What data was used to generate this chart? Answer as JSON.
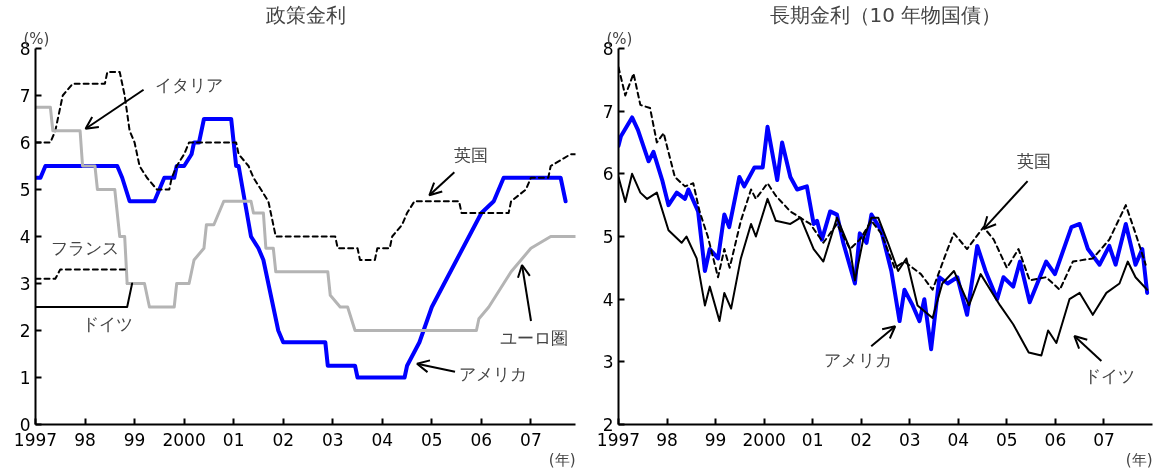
{
  "chart_data": [
    {
      "type": "line",
      "title": "政策金利",
      "ylabel": "(%)",
      "xlabel": "(年)",
      "xlim": [
        1997,
        2007.9
      ],
      "ylim": [
        0,
        8
      ],
      "xticks": [
        {
          "value": 1997,
          "label": "1997"
        },
        {
          "value": 1998,
          "label": "98"
        },
        {
          "value": 1999,
          "label": "99"
        },
        {
          "value": 2000,
          "label": "2000"
        },
        {
          "value": 2001,
          "label": "01"
        },
        {
          "value": 2002,
          "label": "02"
        },
        {
          "value": 2003,
          "label": "03"
        },
        {
          "value": 2004,
          "label": "04"
        },
        {
          "value": 2005,
          "label": "05"
        },
        {
          "value": 2006,
          "label": "06"
        },
        {
          "value": 2007,
          "label": "07"
        }
      ],
      "yticks": [
        0,
        1,
        2,
        3,
        4,
        5,
        6,
        7,
        8
      ],
      "series": [
        {
          "color": "#0000ff",
          "line_style": "solid",
          "x": [
            1997,
            1997.1,
            1997.2,
            1998.65,
            1998.75,
            1998.9,
            1999.4,
            1999.5,
            1999.6,
            1999.8,
            1999.85,
            2000.0,
            2000.15,
            2000.2,
            2000.3,
            2000.4,
            2000.95,
            2001.05,
            2001.1,
            2001.35,
            2001.5,
            2001.6,
            2001.9,
            2002.0,
            2002.85,
            2002.9,
            2003.45,
            2003.5,
            2004.45,
            2004.5,
            2004.75,
            2005.0,
            2005.25,
            2005.5,
            2005.75,
            2006.0,
            2006.25,
            2006.45,
            2007.6,
            2007.7
          ],
          "values": [
            5.25,
            5.25,
            5.5,
            5.5,
            5.25,
            4.75,
            4.75,
            5.0,
            5.25,
            5.25,
            5.5,
            5.5,
            5.75,
            6.0,
            6.0,
            6.5,
            6.5,
            5.5,
            5.5,
            4.0,
            3.75,
            3.5,
            2.0,
            1.75,
            1.75,
            1.25,
            1.25,
            1.0,
            1.0,
            1.25,
            1.75,
            2.5,
            3.0,
            3.5,
            4.0,
            4.5,
            4.75,
            5.25,
            5.25,
            4.75
          ]
        },
        {
          "color": "#000000",
          "line_style": "dashed",
          "x": [
            1997,
            1997.3,
            1997.4,
            1997.55,
            1997.75,
            1998.4,
            1998.45,
            1998.7,
            1998.8,
            1998.9,
            1999.0,
            1999.1,
            1999.25,
            1999.45,
            1999.7,
            1999.75,
            1999.85,
            2000.0,
            2000.1,
            2001.05,
            2001.1,
            2001.3,
            2001.4,
            2001.7,
            2001.85,
            2003.05,
            2003.1,
            2003.5,
            2003.55,
            2003.85,
            2003.9,
            2004.15,
            2004.2,
            2004.4,
            2004.5,
            2004.65,
            2005.55,
            2005.6,
            2006.55,
            2006.6,
            2006.9,
            2007.0,
            2007.35,
            2007.4,
            2007.8,
            2007.9
          ],
          "values": [
            6.0,
            6.0,
            6.25,
            7.0,
            7.25,
            7.25,
            7.5,
            7.5,
            7.0,
            6.25,
            6.0,
            5.5,
            5.25,
            5.0,
            5.0,
            5.25,
            5.5,
            5.75,
            6.0,
            6.0,
            5.75,
            5.5,
            5.25,
            4.75,
            4.0,
            4.0,
            3.75,
            3.75,
            3.5,
            3.5,
            3.75,
            3.75,
            4.0,
            4.25,
            4.5,
            4.75,
            4.75,
            4.5,
            4.5,
            4.75,
            5.0,
            5.25,
            5.25,
            5.5,
            5.75,
            5.75
          ]
        },
        {
          "color": "#b4b4b4",
          "line_style": "solid",
          "x": [
            1997,
            1997.3,
            1997.35,
            1997.9,
            1997.95,
            1998.2,
            1998.25,
            1998.6,
            1998.7,
            1998.8,
            1998.85
          ],
          "values": [
            6.75,
            6.75,
            6.25,
            6.25,
            5.5,
            5.5,
            5.0,
            5.0,
            4.0,
            4.0,
            3.0
          ]
        },
        {
          "color": "#b4b4b4",
          "line_style": "solid",
          "x": [
            1998.85,
            1999.2,
            1999.3,
            1999.8,
            1999.85,
            2000.1,
            2000.15,
            2000.2,
            2000.4,
            2000.45,
            2000.6,
            2000.7,
            2000.8,
            2001.35,
            2001.4,
            2001.6,
            2001.65,
            2001.8,
            2001.85,
            2002.9,
            2002.95,
            2003.15,
            2003.3,
            2003.45,
            2005.9,
            2005.95,
            2006.15,
            2006.3,
            2006.45,
            2006.6,
            2006.8,
            2007.0,
            2007.4,
            2007.9
          ],
          "values": [
            3.0,
            3.0,
            2.5,
            2.5,
            3.0,
            3.0,
            3.25,
            3.5,
            3.75,
            4.25,
            4.25,
            4.5,
            4.75,
            4.75,
            4.5,
            4.5,
            3.75,
            3.75,
            3.25,
            3.25,
            2.75,
            2.5,
            2.5,
            2.0,
            2.0,
            2.25,
            2.5,
            2.75,
            3.0,
            3.25,
            3.5,
            3.75,
            4.0,
            4.0
          ]
        },
        {
          "color": "#000000",
          "line_style": "dashed",
          "x": [
            1997,
            1997.4,
            1997.5,
            1998.85
          ],
          "values": [
            3.1,
            3.1,
            3.3,
            3.3
          ]
        },
        {
          "color": "#000000",
          "line_style": "solid",
          "x": [
            1997,
            1998.85,
            1998.95
          ],
          "values": [
            2.5,
            2.5,
            3.0
          ]
        }
      ],
      "annotations": [
        {
          "text": "イタリア",
          "x": 1997.95,
          "y": 6.25
        },
        {
          "text": "フランス",
          "x": 1997.6,
          "y": 3.3
        },
        {
          "text": "ドイツ",
          "x": 1998.5,
          "y": 2.5
        },
        {
          "text": "英国",
          "x": 2004.95,
          "y": 4.75
        },
        {
          "text": "ユーロ圏",
          "x": 2006.8,
          "y": 3.5
        },
        {
          "text": "アメリカ",
          "x": 2004.6,
          "y": 1.25
        }
      ]
    },
    {
      "type": "line",
      "title": "長期金利（10 年物国債）",
      "ylabel": "(%)",
      "xlabel": "(年)",
      "xlim": [
        1997,
        2008
      ],
      "ylim": [
        2,
        8
      ],
      "xticks": [
        {
          "value": 1997,
          "label": "1997"
        },
        {
          "value": 1998,
          "label": "98"
        },
        {
          "value": 1999,
          "label": "99"
        },
        {
          "value": 2000,
          "label": "2000"
        },
        {
          "value": 2001,
          "label": "01"
        },
        {
          "value": 2002,
          "label": "02"
        },
        {
          "value": 2003,
          "label": "03"
        },
        {
          "value": 2004,
          "label": "04"
        },
        {
          "value": 2005,
          "label": "05"
        },
        {
          "value": 2006,
          "label": "06"
        },
        {
          "value": 2007,
          "label": "07"
        }
      ],
      "yticks": [
        2,
        3,
        4,
        5,
        6,
        7,
        8
      ],
      "series": [
        {
          "color": "#000000",
          "line_style": "dashed",
          "x": [
            1997,
            1997.14,
            1997.31,
            1997.45,
            1997.65,
            1997.79,
            1997.93,
            1998.16,
            1998.37,
            1998.54,
            1998.67,
            1998.84,
            1999.05,
            1999.18,
            1999.29,
            1999.52,
            1999.73,
            1999.83,
            2000.07,
            2000.24,
            2000.54,
            2000.95,
            2001.22,
            2001.5,
            2001.77,
            2001.97,
            2002.21,
            2002.41,
            2002.69,
            2002.89,
            2003.23,
            2003.47,
            2003.78,
            2003.91,
            2004.18,
            2004.52,
            2004.73,
            2005.0,
            2005.24,
            2005.47,
            2005.81,
            2006.09,
            2006.36,
            2006.77,
            2007.11,
            2007.45,
            2007.65,
            2007.86
          ],
          "values": [
            7.7,
            7.25,
            7.6,
            7.1,
            7.05,
            6.5,
            6.65,
            5.95,
            5.8,
            5.85,
            5.4,
            5.0,
            4.35,
            4.8,
            4.5,
            5.25,
            5.75,
            5.6,
            5.85,
            5.65,
            5.4,
            5.2,
            4.9,
            5.2,
            4.8,
            4.95,
            5.25,
            5.05,
            4.5,
            4.6,
            4.4,
            4.15,
            4.8,
            5.05,
            4.8,
            5.15,
            4.95,
            4.5,
            4.8,
            4.3,
            4.35,
            4.15,
            4.6,
            4.65,
            4.95,
            5.5,
            5.05,
            4.55
          ]
        },
        {
          "color": "#000000",
          "line_style": "solid",
          "x": [
            1997,
            1997.14,
            1997.28,
            1997.45,
            1997.59,
            1997.79,
            1998.03,
            1998.3,
            1998.4,
            1998.61,
            1998.78,
            1998.88,
            1999.08,
            1999.18,
            1999.32,
            1999.52,
            1999.73,
            1999.83,
            2000.07,
            2000.24,
            2000.54,
            2000.75,
            2001.02,
            2001.22,
            2001.5,
            2001.77,
            2001.87,
            2002.04,
            2002.21,
            2002.35,
            2002.55,
            2002.76,
            2002.93,
            2003.16,
            2003.47,
            2003.67,
            2003.91,
            2004.22,
            2004.46,
            2004.86,
            2005.13,
            2005.45,
            2005.71,
            2005.85,
            2006.02,
            2006.29,
            2006.5,
            2006.77,
            2007.05,
            2007.32,
            2007.49,
            2007.65,
            2007.89
          ],
          "values": [
            5.95,
            5.55,
            6.0,
            5.7,
            5.6,
            5.7,
            5.1,
            4.9,
            5.0,
            4.65,
            3.9,
            4.2,
            3.65,
            4.1,
            3.85,
            4.65,
            5.2,
            5.0,
            5.6,
            5.25,
            5.2,
            5.3,
            4.8,
            4.6,
            5.3,
            4.8,
            4.3,
            4.95,
            5.3,
            5.3,
            4.9,
            4.45,
            4.65,
            3.9,
            3.7,
            4.25,
            4.45,
            3.9,
            4.4,
            3.9,
            3.6,
            3.15,
            3.1,
            3.5,
            3.3,
            4.0,
            4.1,
            3.75,
            4.1,
            4.25,
            4.6,
            4.35,
            4.15
          ]
        },
        {
          "color": "#0000ff",
          "line_style": "solid",
          "x": [
            1997,
            1997.05,
            1997.28,
            1997.4,
            1997.62,
            1997.72,
            1997.9,
            1998.03,
            1998.2,
            1998.37,
            1998.44,
            1998.64,
            1998.78,
            1998.88,
            1999.05,
            1999.18,
            1999.28,
            1999.49,
            1999.59,
            1999.8,
            1999.97,
            2000.07,
            2000.27,
            2000.37,
            2000.54,
            2000.68,
            2000.88,
            2001.02,
            2001.09,
            2001.19,
            2001.36,
            2001.5,
            2001.63,
            2001.87,
            2001.97,
            2002.11,
            2002.21,
            2002.41,
            2002.62,
            2002.79,
            2002.89,
            2003.06,
            2003.2,
            2003.3,
            2003.44,
            2003.61,
            2003.78,
            2003.98,
            2004.18,
            2004.39,
            2004.56,
            2004.8,
            2004.93,
            2005.13,
            2005.27,
            2005.47,
            2005.81,
            2005.99,
            2006.33,
            2006.5,
            2006.67,
            2006.91,
            2007.11,
            2007.24,
            2007.45,
            2007.65,
            2007.79,
            2007.89
          ],
          "values": [
            6.45,
            6.6,
            6.9,
            6.7,
            6.2,
            6.35,
            5.9,
            5.5,
            5.7,
            5.6,
            5.75,
            5.4,
            4.45,
            4.8,
            4.65,
            5.35,
            5.15,
            5.95,
            5.8,
            6.1,
            6.1,
            6.75,
            5.9,
            6.5,
            5.95,
            5.75,
            5.8,
            5.2,
            5.25,
            4.95,
            5.4,
            5.35,
            4.9,
            4.25,
            5.05,
            4.9,
            5.35,
            5.1,
            4.45,
            3.65,
            4.15,
            3.9,
            3.65,
            4.0,
            3.2,
            4.35,
            4.25,
            4.35,
            3.75,
            4.85,
            4.45,
            4.0,
            4.35,
            4.2,
            4.6,
            3.95,
            4.6,
            4.4,
            5.15,
            5.2,
            4.8,
            4.55,
            4.85,
            4.55,
            5.2,
            4.55,
            4.8,
            4.1
          ]
        }
      ],
      "annotations": [
        {
          "text": "英国",
          "x": 2004.52,
          "y": 5.15
        },
        {
          "text": "アメリカ",
          "x": 2002.7,
          "y": 3.6
        },
        {
          "text": "ドイツ",
          "x": 2006.02,
          "y": 3.3
        }
      ]
    }
  ]
}
